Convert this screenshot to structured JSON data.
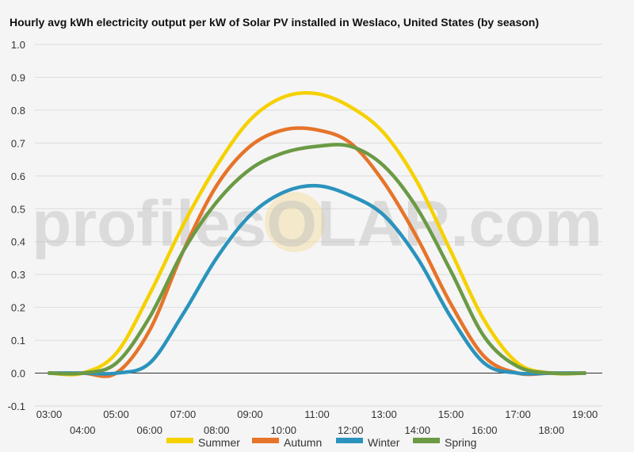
{
  "chart_data": {
    "type": "line",
    "title": "Hourly avg kWh electricity output per kW of Solar PV installed in Weslaco, United States (by season)",
    "watermark": "profilesOLAR.com",
    "x": [
      "03:00",
      "04:00",
      "05:00",
      "06:00",
      "07:00",
      "08:00",
      "09:00",
      "10:00",
      "11:00",
      "12:00",
      "13:00",
      "14:00",
      "15:00",
      "16:00",
      "17:00",
      "18:00",
      "19:00"
    ],
    "ylim": [
      -0.1,
      1.0
    ],
    "yticks": [
      "-0.1",
      "0.0",
      "0.1",
      "0.2",
      "0.3",
      "0.4",
      "0.5",
      "0.6",
      "0.7",
      "0.8",
      "0.9",
      "1.0"
    ],
    "grid": true,
    "legend_position": "bottom",
    "series": [
      {
        "name": "Summer",
        "color": "#f5d100",
        "values": [
          0.0,
          0.0,
          0.06,
          0.24,
          0.45,
          0.63,
          0.77,
          0.84,
          0.85,
          0.81,
          0.73,
          0.58,
          0.37,
          0.16,
          0.03,
          0.0,
          0.0
        ]
      },
      {
        "name": "Autumn",
        "color": "#e6742a",
        "values": [
          0.0,
          0.0,
          0.0,
          0.13,
          0.37,
          0.57,
          0.69,
          0.74,
          0.74,
          0.7,
          0.58,
          0.41,
          0.21,
          0.05,
          0.0,
          0.0,
          0.0
        ]
      },
      {
        "name": "Winter",
        "color": "#2b93bc",
        "values": [
          0.0,
          0.0,
          0.0,
          0.03,
          0.18,
          0.35,
          0.48,
          0.55,
          0.57,
          0.54,
          0.48,
          0.35,
          0.17,
          0.03,
          0.0,
          0.0,
          0.0
        ]
      },
      {
        "name": "Spring",
        "color": "#6b9a45",
        "values": [
          0.0,
          0.0,
          0.03,
          0.17,
          0.37,
          0.52,
          0.62,
          0.67,
          0.69,
          0.69,
          0.63,
          0.5,
          0.31,
          0.11,
          0.02,
          0.0,
          0.0
        ]
      }
    ]
  }
}
